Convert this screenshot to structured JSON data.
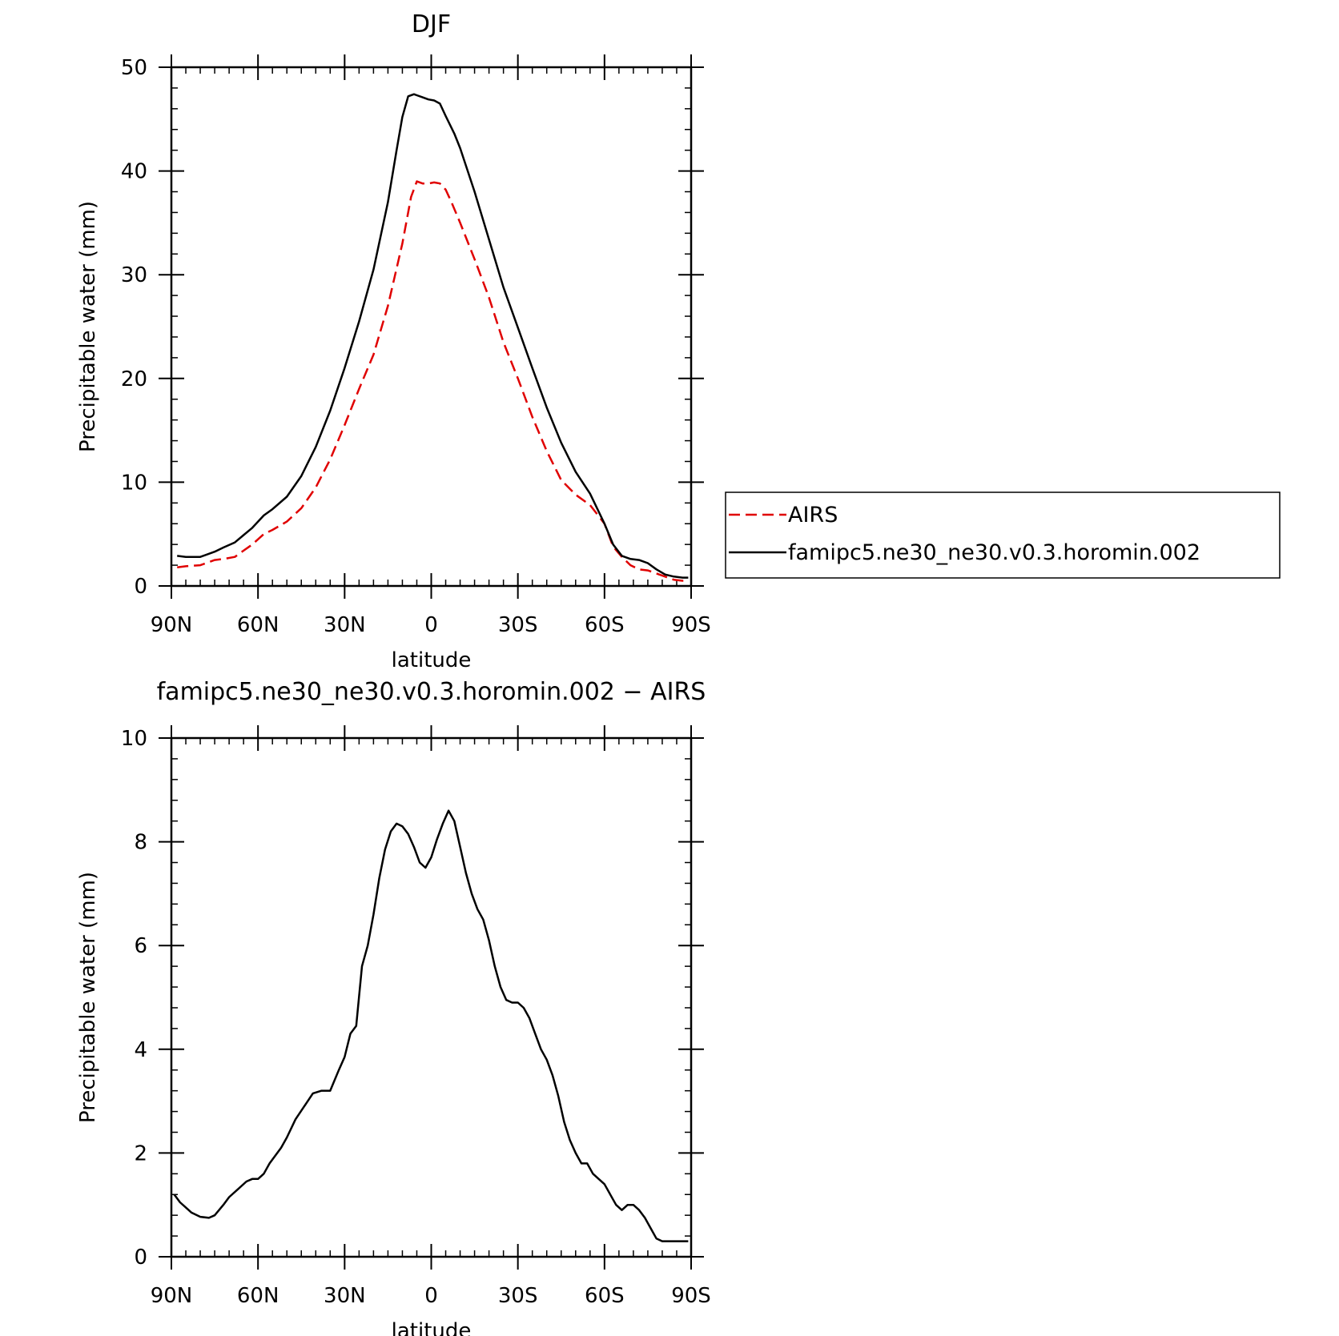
{
  "chart_data": [
    {
      "type": "line",
      "title": "DJF",
      "xlabel": "latitude",
      "ylabel": "Precipitable water (mm)",
      "xlim": [
        90,
        -90
      ],
      "ylim": [
        0,
        50
      ],
      "x_tick_values": [
        90,
        60,
        30,
        0,
        -30,
        -60,
        -90
      ],
      "x_tick_labels": [
        "90N",
        "60N",
        "30N",
        "0",
        "30S",
        "60S",
        "90S"
      ],
      "y_tick_values": [
        0,
        10,
        20,
        30,
        40,
        50
      ],
      "y_tick_labels": [
        "0",
        "10",
        "20",
        "30",
        "40",
        "50"
      ],
      "legend": {
        "position": "right",
        "entries": [
          "AIRS",
          "famipc5.ne30_ne30.v0.3.horomin.002"
        ]
      },
      "series": [
        {
          "name": "AIRS",
          "color": "#e00000",
          "dash": "dashed",
          "x": [
            88,
            85,
            80,
            75,
            72,
            68,
            65,
            62,
            58,
            55,
            50,
            45,
            40,
            35,
            30,
            25,
            20,
            15,
            10,
            7,
            5,
            3,
            1,
            -1,
            -3,
            -5,
            -7,
            -10,
            -15,
            -20,
            -25,
            -30,
            -35,
            -40,
            -45,
            -50,
            -55,
            -60,
            -63,
            -66,
            -69,
            -72,
            -75,
            -78,
            -81,
            -84,
            -87,
            -89
          ],
          "values": [
            1.8,
            1.9,
            2.0,
            2.5,
            2.6,
            2.8,
            3.4,
            4.0,
            5.0,
            5.4,
            6.2,
            7.5,
            9.5,
            12.2,
            15.5,
            19.0,
            22.3,
            27.0,
            33.0,
            37.5,
            39.0,
            38.8,
            38.8,
            38.9,
            38.8,
            38.2,
            37.0,
            35.0,
            31.5,
            27.8,
            23.5,
            20.0,
            16.3,
            13.0,
            10.2,
            8.8,
            7.8,
            6.0,
            3.8,
            2.8,
            2.0,
            1.6,
            1.5,
            1.2,
            0.9,
            0.6,
            0.5,
            0.5
          ]
        },
        {
          "name": "famipc5.ne30_ne30.v0.3.horomin.002",
          "color": "#000000",
          "dash": "solid",
          "x": [
            88,
            85,
            80,
            75,
            72,
            68,
            65,
            62,
            58,
            55,
            50,
            45,
            40,
            35,
            30,
            25,
            20,
            15,
            12,
            10,
            8,
            6,
            5,
            3,
            1,
            -1,
            -3,
            -5,
            -8,
            -10,
            -15,
            -20,
            -25,
            -30,
            -35,
            -40,
            -45,
            -50,
            -55,
            -60,
            -63,
            -66,
            -69,
            -72,
            -75,
            -78,
            -81,
            -84,
            -87,
            -89
          ],
          "values": [
            2.9,
            2.8,
            2.8,
            3.3,
            3.7,
            4.2,
            4.9,
            5.6,
            6.8,
            7.4,
            8.6,
            10.6,
            13.4,
            16.9,
            21.0,
            25.5,
            30.5,
            37.0,
            42.0,
            45.2,
            47.2,
            47.4,
            47.3,
            47.1,
            46.9,
            46.8,
            46.5,
            45.3,
            43.6,
            42.2,
            38.0,
            33.4,
            28.8,
            24.9,
            21.0,
            17.2,
            13.8,
            11.0,
            8.9,
            6.0,
            4.0,
            2.9,
            2.6,
            2.5,
            2.2,
            1.6,
            1.1,
            0.9,
            0.8,
            0.8
          ]
        }
      ]
    },
    {
      "type": "line",
      "title": "famipc5.ne30_ne30.v0.3.horomin.002 − AIRS",
      "xlabel": "latitude",
      "ylabel": "Precipitable water (mm)",
      "xlim": [
        90,
        -90
      ],
      "ylim": [
        0,
        10
      ],
      "x_tick_values": [
        90,
        60,
        30,
        0,
        -30,
        -60,
        -90
      ],
      "x_tick_labels": [
        "90N",
        "60N",
        "30N",
        "0",
        "30S",
        "60S",
        "90S"
      ],
      "y_tick_values": [
        0,
        2,
        4,
        6,
        8,
        10
      ],
      "y_tick_labels": [
        "0",
        "2",
        "4",
        "6",
        "8",
        "10"
      ],
      "series": [
        {
          "color": "#000000",
          "dash": "solid",
          "x": [
            89,
            87,
            85,
            83,
            80,
            77,
            75,
            72,
            70,
            67,
            64,
            62,
            60,
            58,
            56,
            54,
            52,
            50,
            47,
            44,
            41,
            38,
            35,
            32,
            30,
            28,
            26,
            24,
            22,
            20,
            18,
            16,
            14,
            12,
            10,
            8,
            6,
            4,
            2,
            0,
            -2,
            -4,
            -6,
            -8,
            -10,
            -12,
            -14,
            -16,
            -18,
            -20,
            -22,
            -24,
            -26,
            -28,
            -30,
            -32,
            -34,
            -36,
            -38,
            -40,
            -42,
            -44,
            -46,
            -48,
            -50,
            -52,
            -54,
            -56,
            -58,
            -60,
            -62,
            -64,
            -66,
            -68,
            -70,
            -72,
            -74,
            -76,
            -78,
            -80,
            -82,
            -84,
            -86,
            -88,
            -89
          ],
          "values": [
            1.2,
            1.05,
            0.95,
            0.85,
            0.77,
            0.75,
            0.8,
            1.0,
            1.15,
            1.3,
            1.45,
            1.5,
            1.5,
            1.6,
            1.8,
            1.95,
            2.1,
            2.3,
            2.65,
            2.9,
            3.15,
            3.2,
            3.2,
            3.6,
            3.85,
            4.3,
            4.45,
            5.6,
            6.0,
            6.6,
            7.3,
            7.85,
            8.2,
            8.35,
            8.3,
            8.15,
            7.9,
            7.6,
            7.5,
            7.7,
            8.05,
            8.35,
            8.6,
            8.4,
            7.9,
            7.4,
            7.0,
            6.7,
            6.5,
            6.1,
            5.6,
            5.2,
            4.95,
            4.9,
            4.9,
            4.8,
            4.6,
            4.3,
            4.0,
            3.8,
            3.5,
            3.1,
            2.6,
            2.25,
            2.0,
            1.8,
            1.8,
            1.6,
            1.5,
            1.4,
            1.2,
            1.0,
            0.9,
            1.0,
            1.0,
            0.9,
            0.75,
            0.55,
            0.35,
            0.3,
            0.3,
            0.3,
            0.3,
            0.3,
            0.3
          ]
        }
      ]
    }
  ]
}
